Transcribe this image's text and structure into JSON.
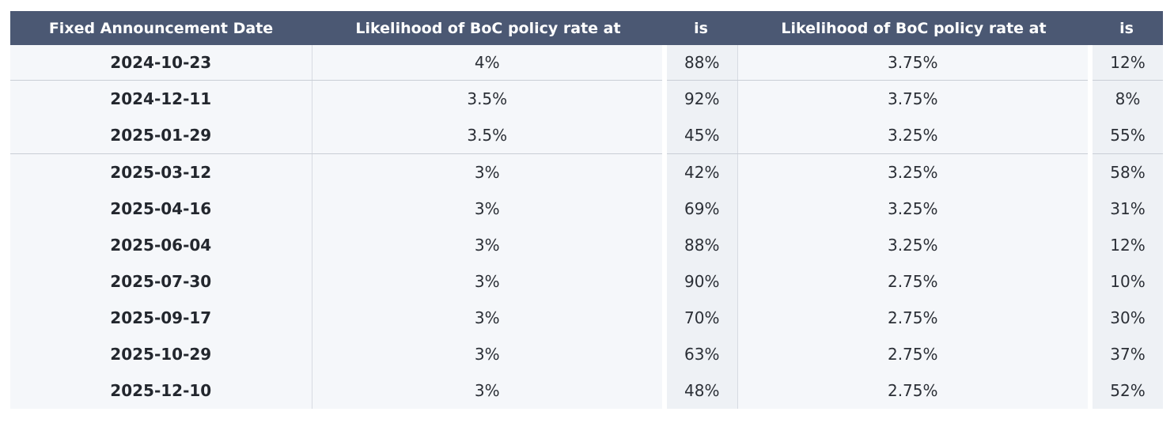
{
  "table": {
    "headers": [
      "Fixed Announcement Date",
      "Likelihood of BoC policy rate at",
      "is",
      "Likelihood of BoC policy rate at",
      "is"
    ],
    "rows": [
      [
        "2024-10-23",
        "4%",
        "88%",
        "3.75%",
        "12%"
      ],
      [
        "2024-12-11",
        "3.5%",
        "92%",
        "3.75%",
        "8%"
      ],
      [
        "2025-01-29",
        "3.5%",
        "45%",
        "3.25%",
        "55%"
      ],
      [
        "2025-03-12",
        "3%",
        "42%",
        "3.25%",
        "58%"
      ],
      [
        "2025-04-16",
        "3%",
        "69%",
        "3.25%",
        "31%"
      ],
      [
        "2025-06-04",
        "3%",
        "88%",
        "3.25%",
        "12%"
      ],
      [
        "2025-07-30",
        "3%",
        "90%",
        "2.75%",
        "10%"
      ],
      [
        "2025-09-17",
        "3%",
        "70%",
        "2.75%",
        "30%"
      ],
      [
        "2025-10-29",
        "3%",
        "63%",
        "2.75%",
        "37%"
      ],
      [
        "2025-12-10",
        "3%",
        "48%",
        "2.75%",
        "52%"
      ]
    ]
  },
  "colors": {
    "header_bg": "#4b5873",
    "header_text": "#ffffff",
    "row_bg": "#f5f7fa",
    "pct_bg": "#eef1f5"
  }
}
